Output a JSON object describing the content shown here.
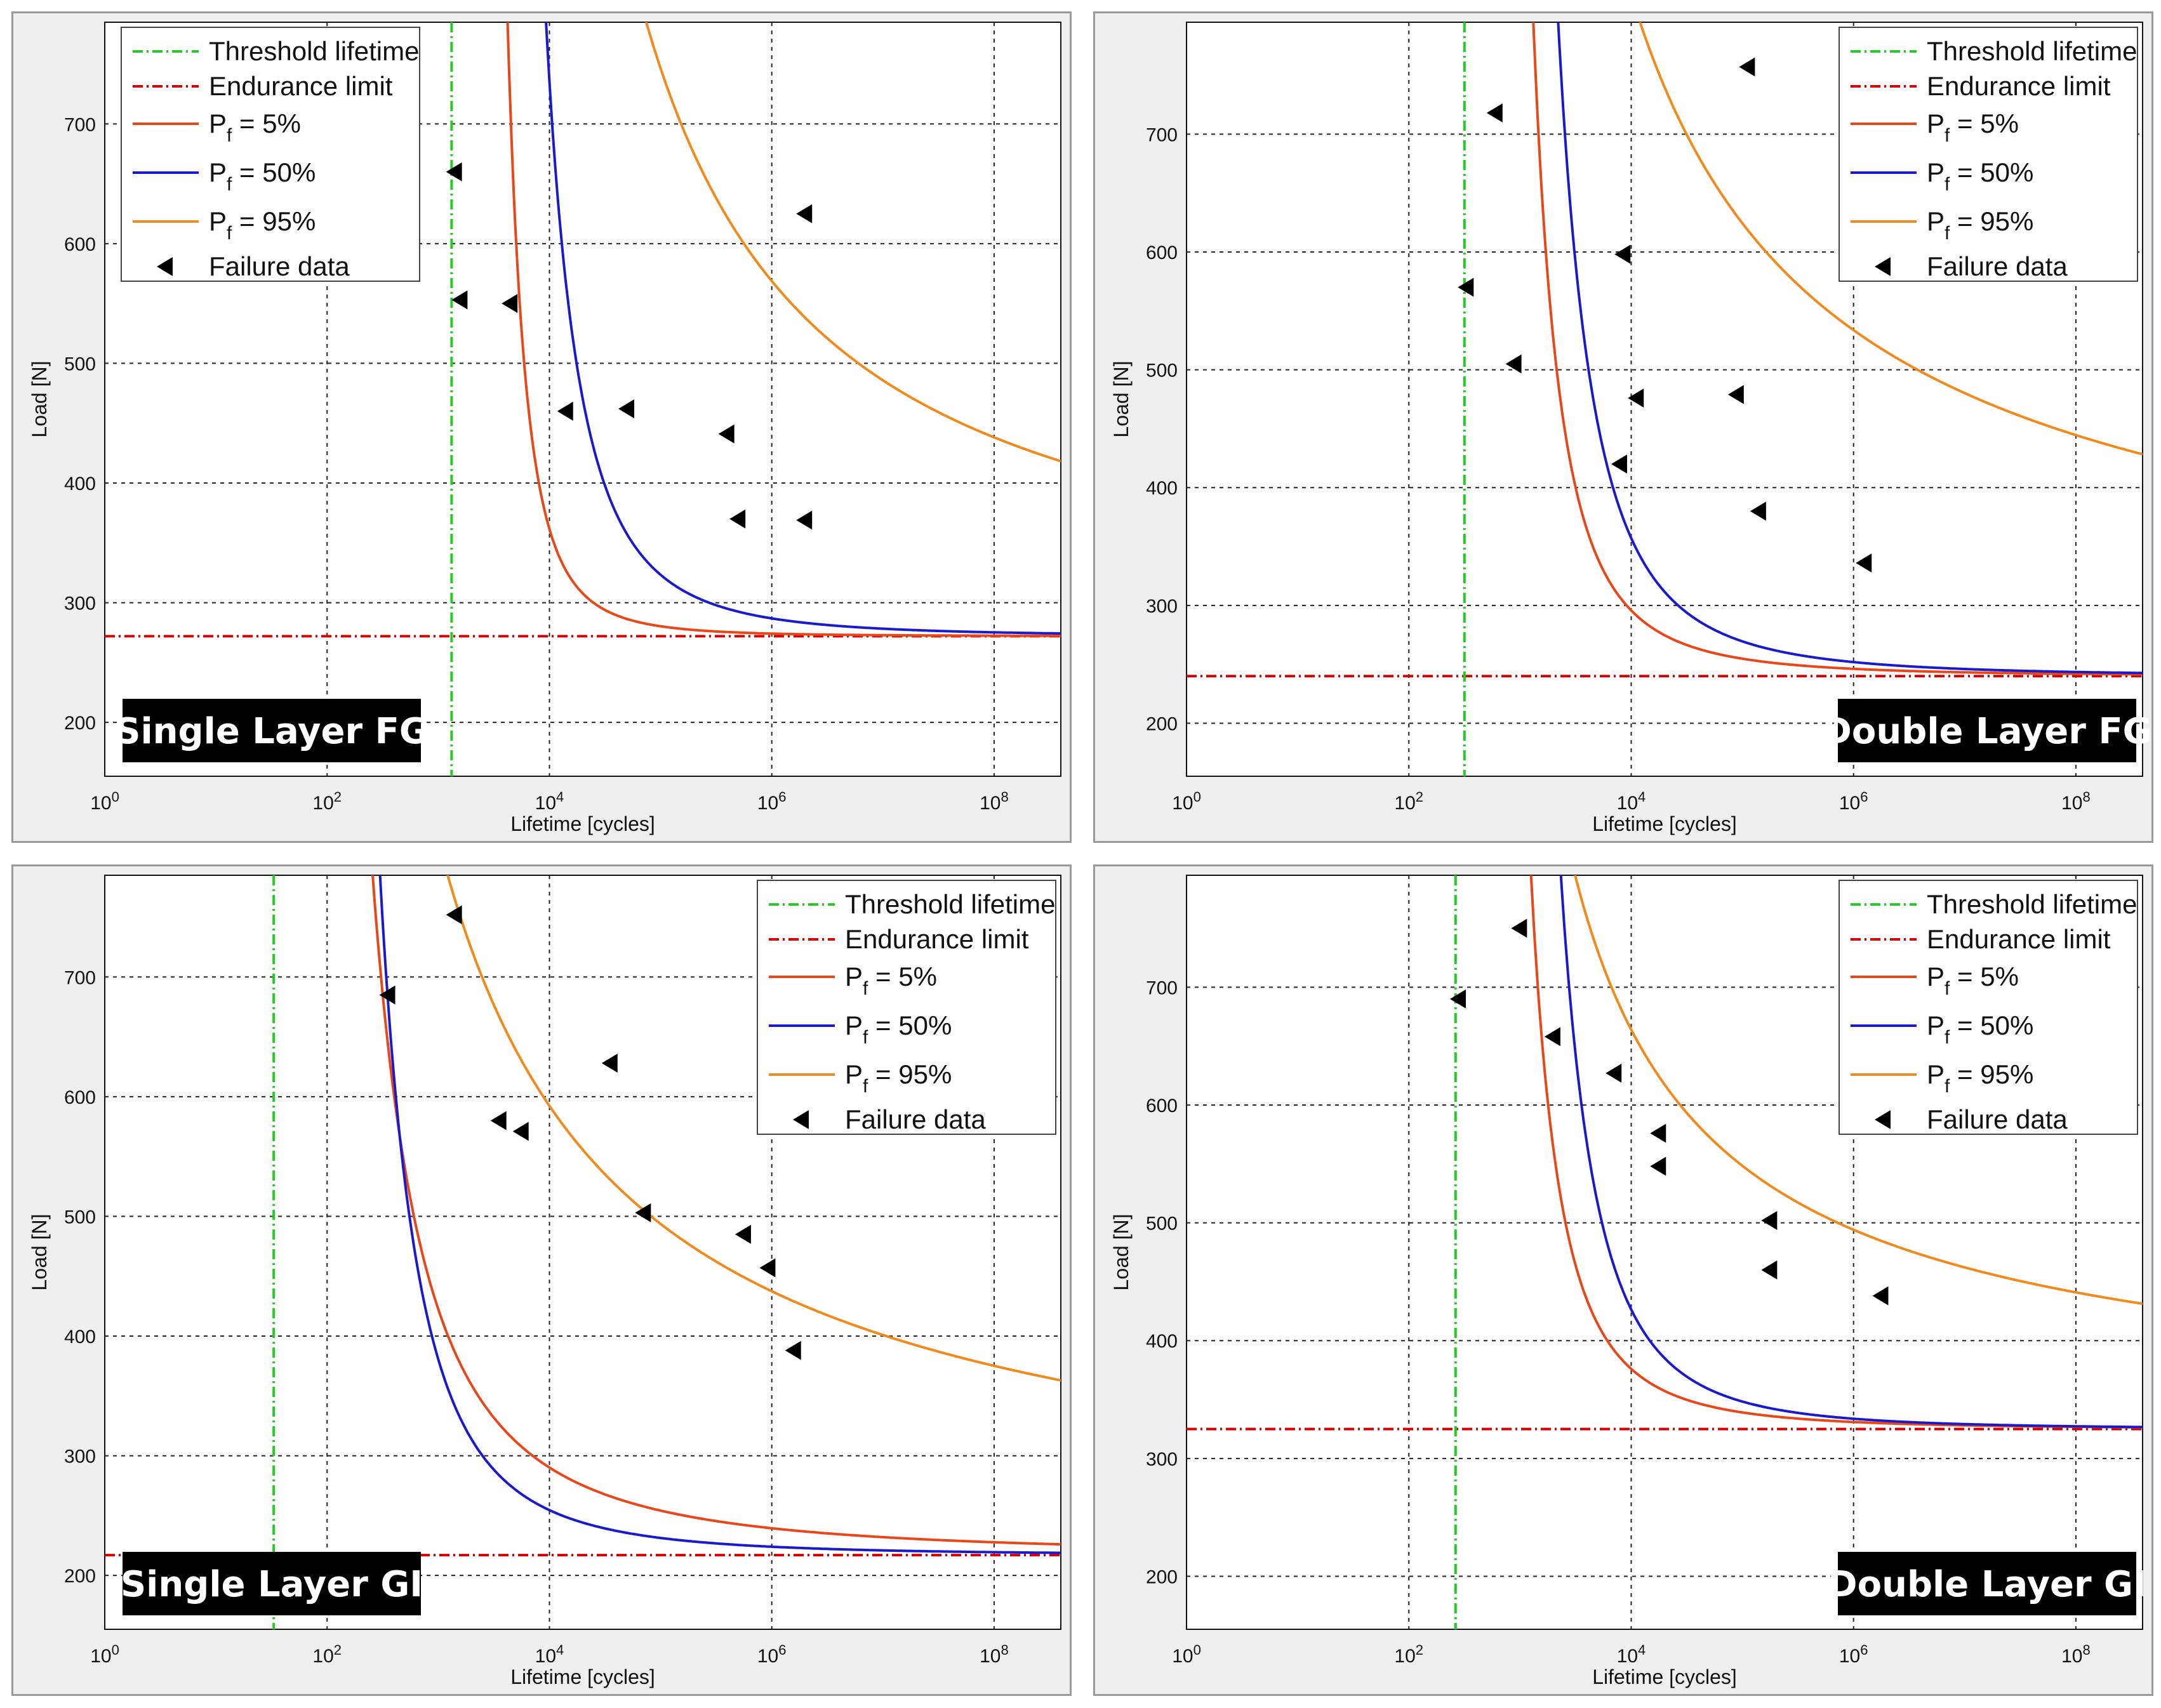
{
  "colors": {
    "threshold": "#22cc22",
    "endurance": "#d40000",
    "pf5": "#e8471a",
    "pf50": "#1a1acc",
    "pf95": "#f08a1c",
    "failure": "#000000",
    "grid": "#222222",
    "panel_bg": "#efefef"
  },
  "legend_labels": {
    "threshold": "Threshold lifetime",
    "endurance": "Endurance limit",
    "pf_prefix": "P",
    "pf_sub": "f",
    "pf5": " = 5%",
    "pf50": " = 50%",
    "pf95": " = 95%",
    "failure": "Failure data"
  },
  "chart_data": [
    {
      "type": "scatter",
      "title": "Single Layer FG",
      "xlabel": "Lifetime [cycles]",
      "ylabel": "Load [N]",
      "xscale": "log",
      "xlim_exp": [
        0,
        8.6
      ],
      "ylim": [
        155,
        785
      ],
      "xtick_exps": [
        0,
        2,
        4,
        6,
        8
      ],
      "yticks": [
        200,
        300,
        400,
        500,
        600,
        700
      ],
      "legend_position": "top-left",
      "label_position": "bottom-left",
      "threshold_exp": 3.12,
      "endurance_limit": 272,
      "curves": {
        "pf5": {
          "A": 60,
          "b": 3.13
        },
        "pf50": {
          "A": 320,
          "b": 2.9
        },
        "pf95": {
          "A": 950,
          "b": 1.1
        }
      },
      "failure_data": [
        {
          "exp": 3.15,
          "load": 660
        },
        {
          "exp": 3.2,
          "load": 553
        },
        {
          "exp": 3.65,
          "load": 550
        },
        {
          "exp": 4.15,
          "load": 460
        },
        {
          "exp": 4.7,
          "load": 462
        },
        {
          "exp": 5.6,
          "load": 441
        },
        {
          "exp": 5.7,
          "load": 370
        },
        {
          "exp": 6.3,
          "load": 369
        },
        {
          "exp": 6.3,
          "load": 625
        }
      ]
    },
    {
      "type": "scatter",
      "title": "Double Layer FG",
      "xlabel": "Lifetime [cycles]",
      "ylabel": "Load [N]",
      "xscale": "log",
      "xlim_exp": [
        0,
        8.6
      ],
      "ylim": [
        155,
        795
      ],
      "xtick_exps": [
        0,
        2,
        4,
        6,
        8
      ],
      "yticks": [
        200,
        300,
        400,
        500,
        600,
        700
      ],
      "legend_position": "top-right",
      "label_position": "bottom-right",
      "threshold_exp": 2.5,
      "endurance_limit": 240,
      "curves": {
        "pf5": {
          "A": 160,
          "b": 2.6
        },
        "pf50": {
          "A": 350,
          "b": 2.7
        },
        "pf95": {
          "A": 800,
          "b": 0.8
        }
      },
      "failure_data": [
        {
          "exp": 2.52,
          "load": 570
        },
        {
          "exp": 2.78,
          "load": 718
        },
        {
          "exp": 2.95,
          "load": 505
        },
        {
          "exp": 3.9,
          "load": 420
        },
        {
          "exp": 3.93,
          "load": 598
        },
        {
          "exp": 4.05,
          "load": 476
        },
        {
          "exp": 4.95,
          "load": 479
        },
        {
          "exp": 5.15,
          "load": 380
        },
        {
          "exp": 6.1,
          "load": 336
        },
        {
          "exp": 5.05,
          "load": 757
        }
      ]
    },
    {
      "type": "scatter",
      "title": "Single Layer GI",
      "xlabel": "Lifetime [cycles]",
      "ylabel": "Load [N]",
      "xscale": "log",
      "xlim_exp": [
        0,
        8.6
      ],
      "ylim": [
        155,
        785
      ],
      "xtick_exps": [
        0,
        2,
        4,
        6,
        8
      ],
      "yticks": [
        200,
        300,
        400,
        500,
        600,
        700
      ],
      "legend_position": "top-right",
      "label_position": "bottom-left",
      "threshold_exp": 1.52,
      "endurance_limit": 217,
      "curves": {
        "pf5": {
          "A": 450,
          "b": 2.0
        },
        "pf50": {
          "A": 500,
          "b": 2.85
        },
        "pf95": {
          "A": 850,
          "b": 0.9
        }
      },
      "failure_data": [
        {
          "exp": 2.55,
          "load": 685
        },
        {
          "exp": 3.15,
          "load": 752
        },
        {
          "exp": 3.55,
          "load": 580
        },
        {
          "exp": 3.75,
          "load": 571
        },
        {
          "exp": 4.55,
          "load": 628
        },
        {
          "exp": 4.85,
          "load": 503
        },
        {
          "exp": 5.75,
          "load": 485
        },
        {
          "exp": 5.97,
          "load": 457
        },
        {
          "exp": 6.2,
          "load": 388
        }
      ]
    },
    {
      "type": "scatter",
      "title": "Double Layer GI",
      "xlabel": "Lifetime [cycles]",
      "ylabel": "Load [N]",
      "xscale": "log",
      "xlim_exp": [
        0,
        8.6
      ],
      "ylim": [
        155,
        795
      ],
      "xtick_exps": [
        0,
        2,
        4,
        6,
        8
      ],
      "yticks": [
        200,
        300,
        400,
        500,
        600,
        700
      ],
      "legend_position": "top-right",
      "label_position": "bottom-right",
      "threshold_exp": 2.42,
      "endurance_limit": 325,
      "curves": {
        "pf5": {
          "A": 170,
          "b": 2.63
        },
        "pf50": {
          "A": 400,
          "b": 3.0
        },
        "pf95": {
          "A": 500,
          "b": 0.85
        }
      },
      "failure_data": [
        {
          "exp": 2.45,
          "load": 690
        },
        {
          "exp": 3.0,
          "load": 750
        },
        {
          "exp": 3.3,
          "load": 658
        },
        {
          "exp": 3.85,
          "load": 627
        },
        {
          "exp": 4.25,
          "load": 576
        },
        {
          "exp": 4.25,
          "load": 548
        },
        {
          "exp": 5.25,
          "load": 502
        },
        {
          "exp": 5.25,
          "load": 460
        },
        {
          "exp": 6.25,
          "load": 438
        }
      ]
    }
  ]
}
